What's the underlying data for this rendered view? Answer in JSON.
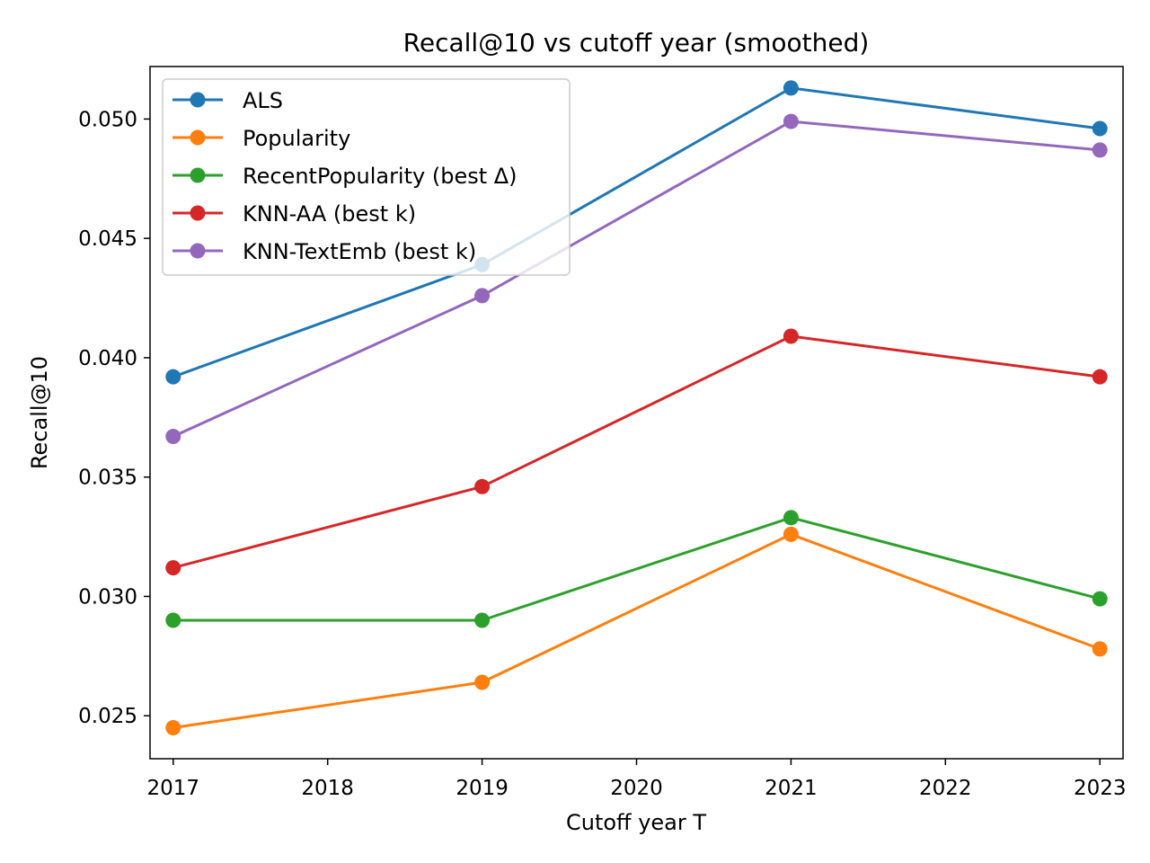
{
  "chart_data": {
    "type": "line",
    "title": "Recall@10 vs cutoff year (smoothed)",
    "xlabel": "Cutoff year T",
    "ylabel": "Recall@10",
    "xlim": [
      2016.85,
      2023.15
    ],
    "ylim": [
      0.0232,
      0.0522
    ],
    "x_ticks": [
      2017,
      2018,
      2019,
      2020,
      2021,
      2022,
      2023
    ],
    "y_ticks": [
      0.025,
      0.03,
      0.035,
      0.04,
      0.045,
      0.05
    ],
    "y_tick_labels": [
      "0.025",
      "0.030",
      "0.035",
      "0.040",
      "0.045",
      "0.050"
    ],
    "x": [
      2017,
      2019,
      2021,
      2023
    ],
    "grid": false,
    "legend_position": "top-left",
    "series": [
      {
        "name": "ALS",
        "color": "#1f77b4",
        "values": [
          0.0392,
          0.0439,
          0.0513,
          0.0496
        ]
      },
      {
        "name": "Popularity",
        "color": "#ff7f0e",
        "values": [
          0.0245,
          0.0264,
          0.0326,
          0.0278
        ]
      },
      {
        "name": "RecentPopularity (best Δ)",
        "color": "#2ca02c",
        "values": [
          0.029,
          0.029,
          0.0333,
          0.0299
        ]
      },
      {
        "name": "KNN-AA (best k)",
        "color": "#d62728",
        "values": [
          0.0312,
          0.0346,
          0.0409,
          0.0392
        ]
      },
      {
        "name": "KNN-TextEmb (best k)",
        "color": "#9467bd",
        "values": [
          0.0367,
          0.0426,
          0.0499,
          0.0487
        ]
      }
    ]
  }
}
